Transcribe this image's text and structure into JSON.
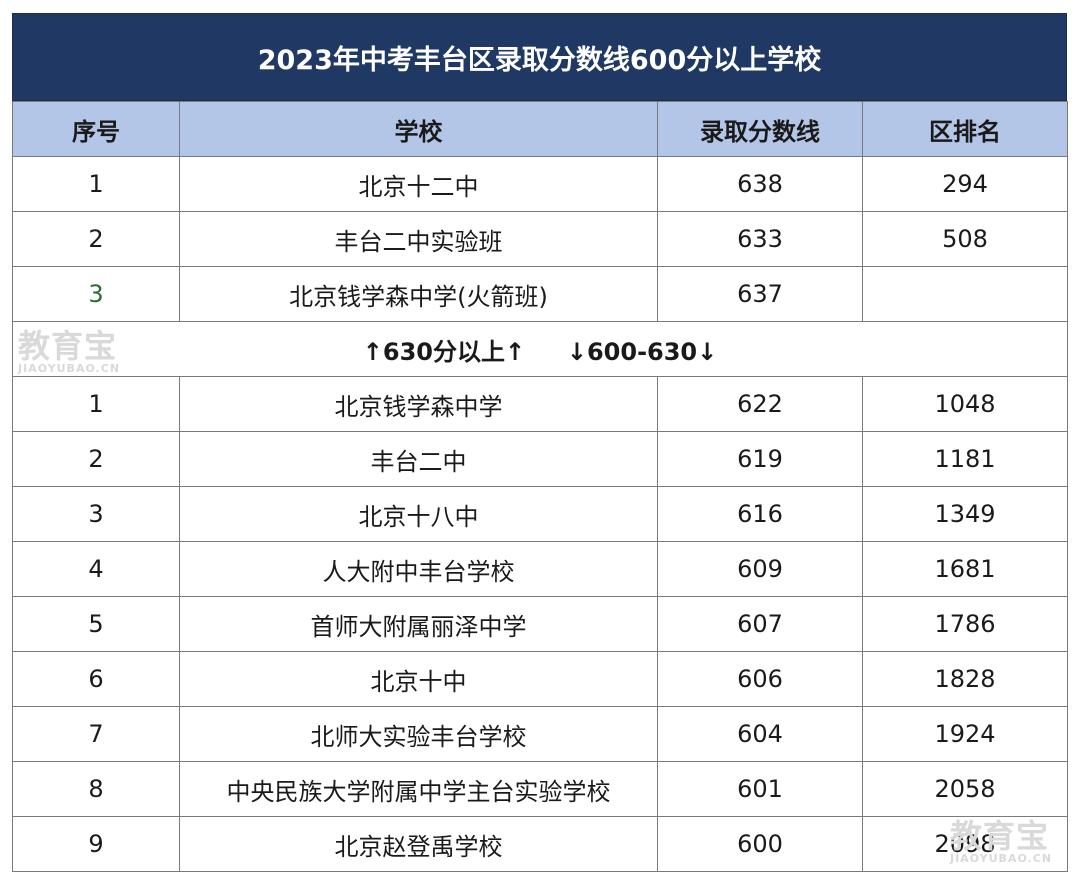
{
  "title": "2023年中考丰台区录取分数线600分以上学校",
  "headers": [
    "序号",
    "学校",
    "录取分数线",
    "区排名"
  ],
  "top_rows": [
    {
      "seq": "1",
      "school": "北京十二中",
      "score": "638",
      "rank": "294"
    },
    {
      "seq": "2",
      "school": "丰台二中实验班",
      "score": "633",
      "rank": "508"
    },
    {
      "seq": "3",
      "school": "北京钱学森中学(火箭班)",
      "score": "637",
      "rank": ""
    }
  ],
  "divider": "↑630分以上↑     ↓600-630↓",
  "bottom_rows": [
    {
      "seq": "1",
      "school": "北京钱学森中学",
      "score": "622",
      "rank": "1048"
    },
    {
      "seq": "2",
      "school": "丰台二中",
      "score": "619",
      "rank": "1181"
    },
    {
      "seq": "3",
      "school": "北京十八中",
      "score": "616",
      "rank": "1349"
    },
    {
      "seq": "4",
      "school": "人大附中丰台学校",
      "score": "609",
      "rank": "1681"
    },
    {
      "seq": "5",
      "school": "首师大附属丽泽中学",
      "score": "607",
      "rank": "1786"
    },
    {
      "seq": "6",
      "school": "北京十中",
      "score": "606",
      "rank": "1828"
    },
    {
      "seq": "7",
      "school": "北师大实验丰台学校",
      "score": "604",
      "rank": "1924"
    },
    {
      "seq": "8",
      "school": "中央民族大学附属中学主台实验学校",
      "score": "601",
      "rank": "2058"
    },
    {
      "seq": "9",
      "school": "北京赵登禹学校",
      "score": "600",
      "rank": "2098"
    }
  ],
  "watermark": {
    "text": "教育宝",
    "domain": "JIAOYUBAO.CN"
  },
  "colors": {
    "title_bg": "#203864",
    "header_bg": "#b4c6e7",
    "seq_green": "#2e6b2e"
  }
}
